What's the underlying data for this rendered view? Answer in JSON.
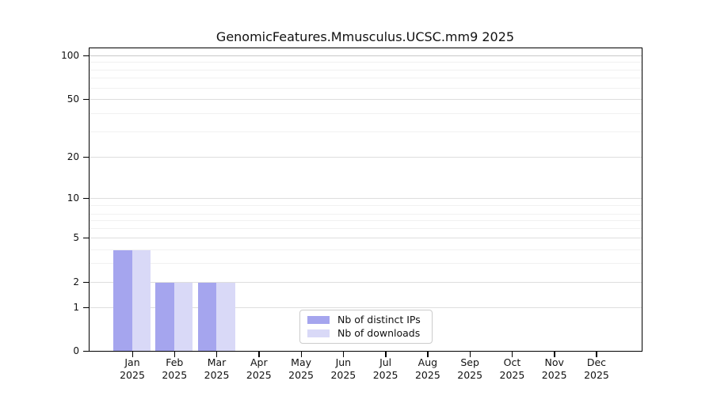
{
  "chart_data": {
    "type": "bar",
    "title": "GenomicFeatures.Mmusculus.UCSC.mm9 2025",
    "categories": [
      "Jan",
      "Feb",
      "Mar",
      "Apr",
      "May",
      "Jun",
      "Jul",
      "Aug",
      "Sep",
      "Oct",
      "Nov",
      "Dec"
    ],
    "year_label": "2025",
    "series": [
      {
        "name": "Nb of distinct IPs",
        "color": "#a5a5ee",
        "values": [
          4,
          2,
          2,
          0,
          0,
          0,
          0,
          0,
          0,
          0,
          0,
          0
        ]
      },
      {
        "name": "Nb of downloads",
        "color": "#d9d9f7",
        "values": [
          4,
          2,
          2,
          0,
          0,
          0,
          0,
          0,
          0,
          0,
          0,
          0
        ]
      }
    ],
    "xlabel": "",
    "ylabel": "",
    "y_axis": {
      "scale": "symlog",
      "ticks": [
        0,
        1,
        2,
        5,
        10,
        20,
        50,
        100
      ],
      "ylim": [
        0,
        110
      ]
    },
    "grid": true,
    "legend": {
      "position": "bottom-center",
      "entries": [
        "Nb of distinct IPs",
        "Nb of downloads"
      ]
    },
    "colors": {
      "background": "#ffffff",
      "axis": "#000000",
      "grid_major": "#dedede",
      "grid_minor": "#f1f1f1"
    }
  }
}
